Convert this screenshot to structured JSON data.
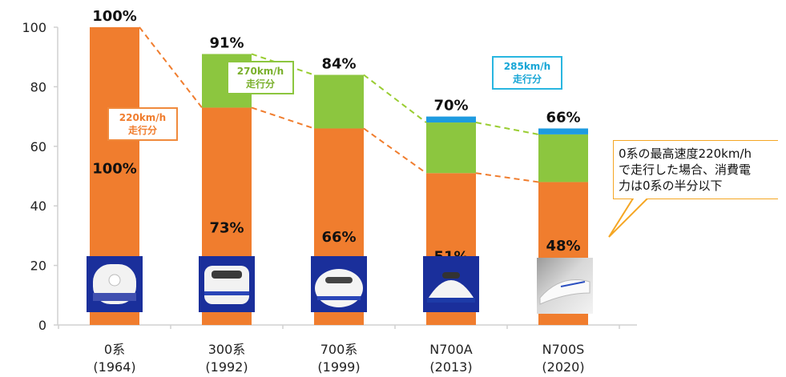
{
  "chart_data": {
    "type": "bar",
    "stacked": true,
    "categories": [
      "0系\n(1964)",
      "300系\n(1992)",
      "700系\n(1999)",
      "N700A\n(2013)",
      "N700S\n(2020)"
    ],
    "category_lines": [
      [
        "0系",
        "(1964)"
      ],
      [
        "300系",
        "(1992)"
      ],
      [
        "700系",
        "(1999)"
      ],
      [
        "N700A",
        "(2013)"
      ],
      [
        "N700S",
        "(2020)"
      ]
    ],
    "series": [
      {
        "values": [
          100,
          73,
          66,
          51,
          48
        ],
        "color": "#f07d2e"
      },
      {
        "values": [
          0,
          18,
          18,
          17,
          16
        ],
        "color": "#8cc63f"
      },
      {
        "values": [
          0,
          0,
          0,
          2,
          2
        ],
        "color": "#1e9be0"
      }
    ],
    "totals": [
      "100%",
      "91%",
      "84%",
      "70%",
      "66%"
    ],
    "inner_labels": [
      "100%",
      "73%",
      "66%",
      "51%",
      "48%"
    ],
    "ylim": [
      0,
      100
    ],
    "yticks": [
      0,
      20,
      40,
      60,
      80,
      100
    ],
    "grid": false,
    "title": "",
    "xlabel": "",
    "ylabel": ""
  },
  "annotations": {
    "callout_220": [
      "220km/h",
      "走行分"
    ],
    "callout_270": [
      "270km/h",
      "走行分"
    ],
    "callout_285": [
      "285km/h",
      "走行分"
    ],
    "note": [
      "0系の最高速度220km/h",
      "で走行した場合、消費電",
      "力は0系の半分以下"
    ]
  },
  "colors": {
    "orange": "#f07d2e",
    "green": "#8cc63f",
    "blue": "#1e9be0",
    "note_border": "#f5a623"
  },
  "icons": [
    "train-0-series-icon",
    "train-300-series-icon",
    "train-700-series-icon",
    "train-n700a-icon",
    "train-n700s-icon"
  ]
}
